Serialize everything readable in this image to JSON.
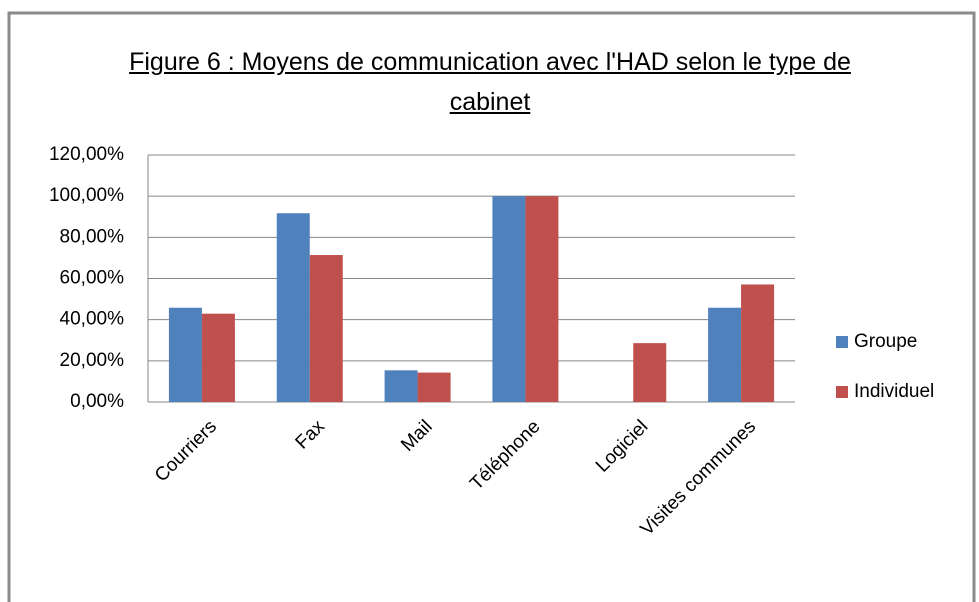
{
  "chart_data": {
    "type": "bar",
    "title": "Figure 6 : Moyens de communication avec l'HAD selon le type de cabinet",
    "categories": [
      "Courriers",
      "Fax",
      "Mail",
      "Téléphone",
      "Logiciel",
      "Visites communes"
    ],
    "series": [
      {
        "name": "Groupe",
        "color": "#4f81bd",
        "values": [
          45.8,
          91.7,
          15.4,
          100,
          0,
          45.8
        ]
      },
      {
        "name": "Individuel",
        "color": "#c0504d",
        "values": [
          42.9,
          71.4,
          14.3,
          100,
          28.6,
          57.1
        ]
      }
    ],
    "ylim": [
      0,
      120
    ],
    "yticks": [
      {
        "value": 0,
        "label": "0,00%"
      },
      {
        "value": 20,
        "label": "20,00%"
      },
      {
        "value": 40,
        "label": "40,00%"
      },
      {
        "value": 60,
        "label": "60,00%"
      },
      {
        "value": 80,
        "label": "80,00%"
      },
      {
        "value": 100,
        "label": "100,00%"
      },
      {
        "value": 120,
        "label": "120,00%"
      }
    ],
    "grid": true,
    "legend": "right"
  }
}
